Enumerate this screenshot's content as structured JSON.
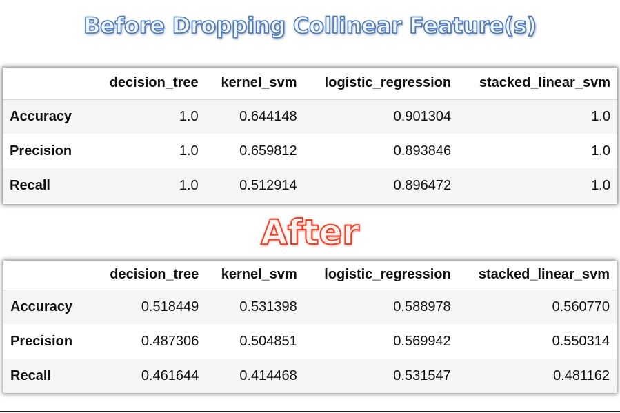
{
  "titles": {
    "before": "Before Dropping Collinear Feature(s)",
    "after": "After"
  },
  "tables": {
    "before": {
      "columns": [
        "",
        "decision_tree",
        "kernel_svm",
        "logistic_regression",
        "stacked_linear_svm"
      ],
      "rows": [
        {
          "label": "Accuracy",
          "values": [
            "1.0",
            "0.644148",
            "0.901304",
            "1.0"
          ]
        },
        {
          "label": "Precision",
          "values": [
            "1.0",
            "0.659812",
            "0.893846",
            "1.0"
          ]
        },
        {
          "label": "Recall",
          "values": [
            "1.0",
            "0.512914",
            "0.896472",
            "1.0"
          ]
        }
      ]
    },
    "after": {
      "columns": [
        "",
        "decision_tree",
        "kernel_svm",
        "logistic_regression",
        "stacked_linear_svm"
      ],
      "rows": [
        {
          "label": "Accuracy",
          "values": [
            "0.518449",
            "0.531398",
            "0.588978",
            "0.560770"
          ]
        },
        {
          "label": "Precision",
          "values": [
            "0.487306",
            "0.504851",
            "0.569942",
            "0.550314"
          ]
        },
        {
          "label": "Recall",
          "values": [
            "0.461644",
            "0.414468",
            "0.531547",
            "0.481162"
          ]
        }
      ]
    }
  }
}
